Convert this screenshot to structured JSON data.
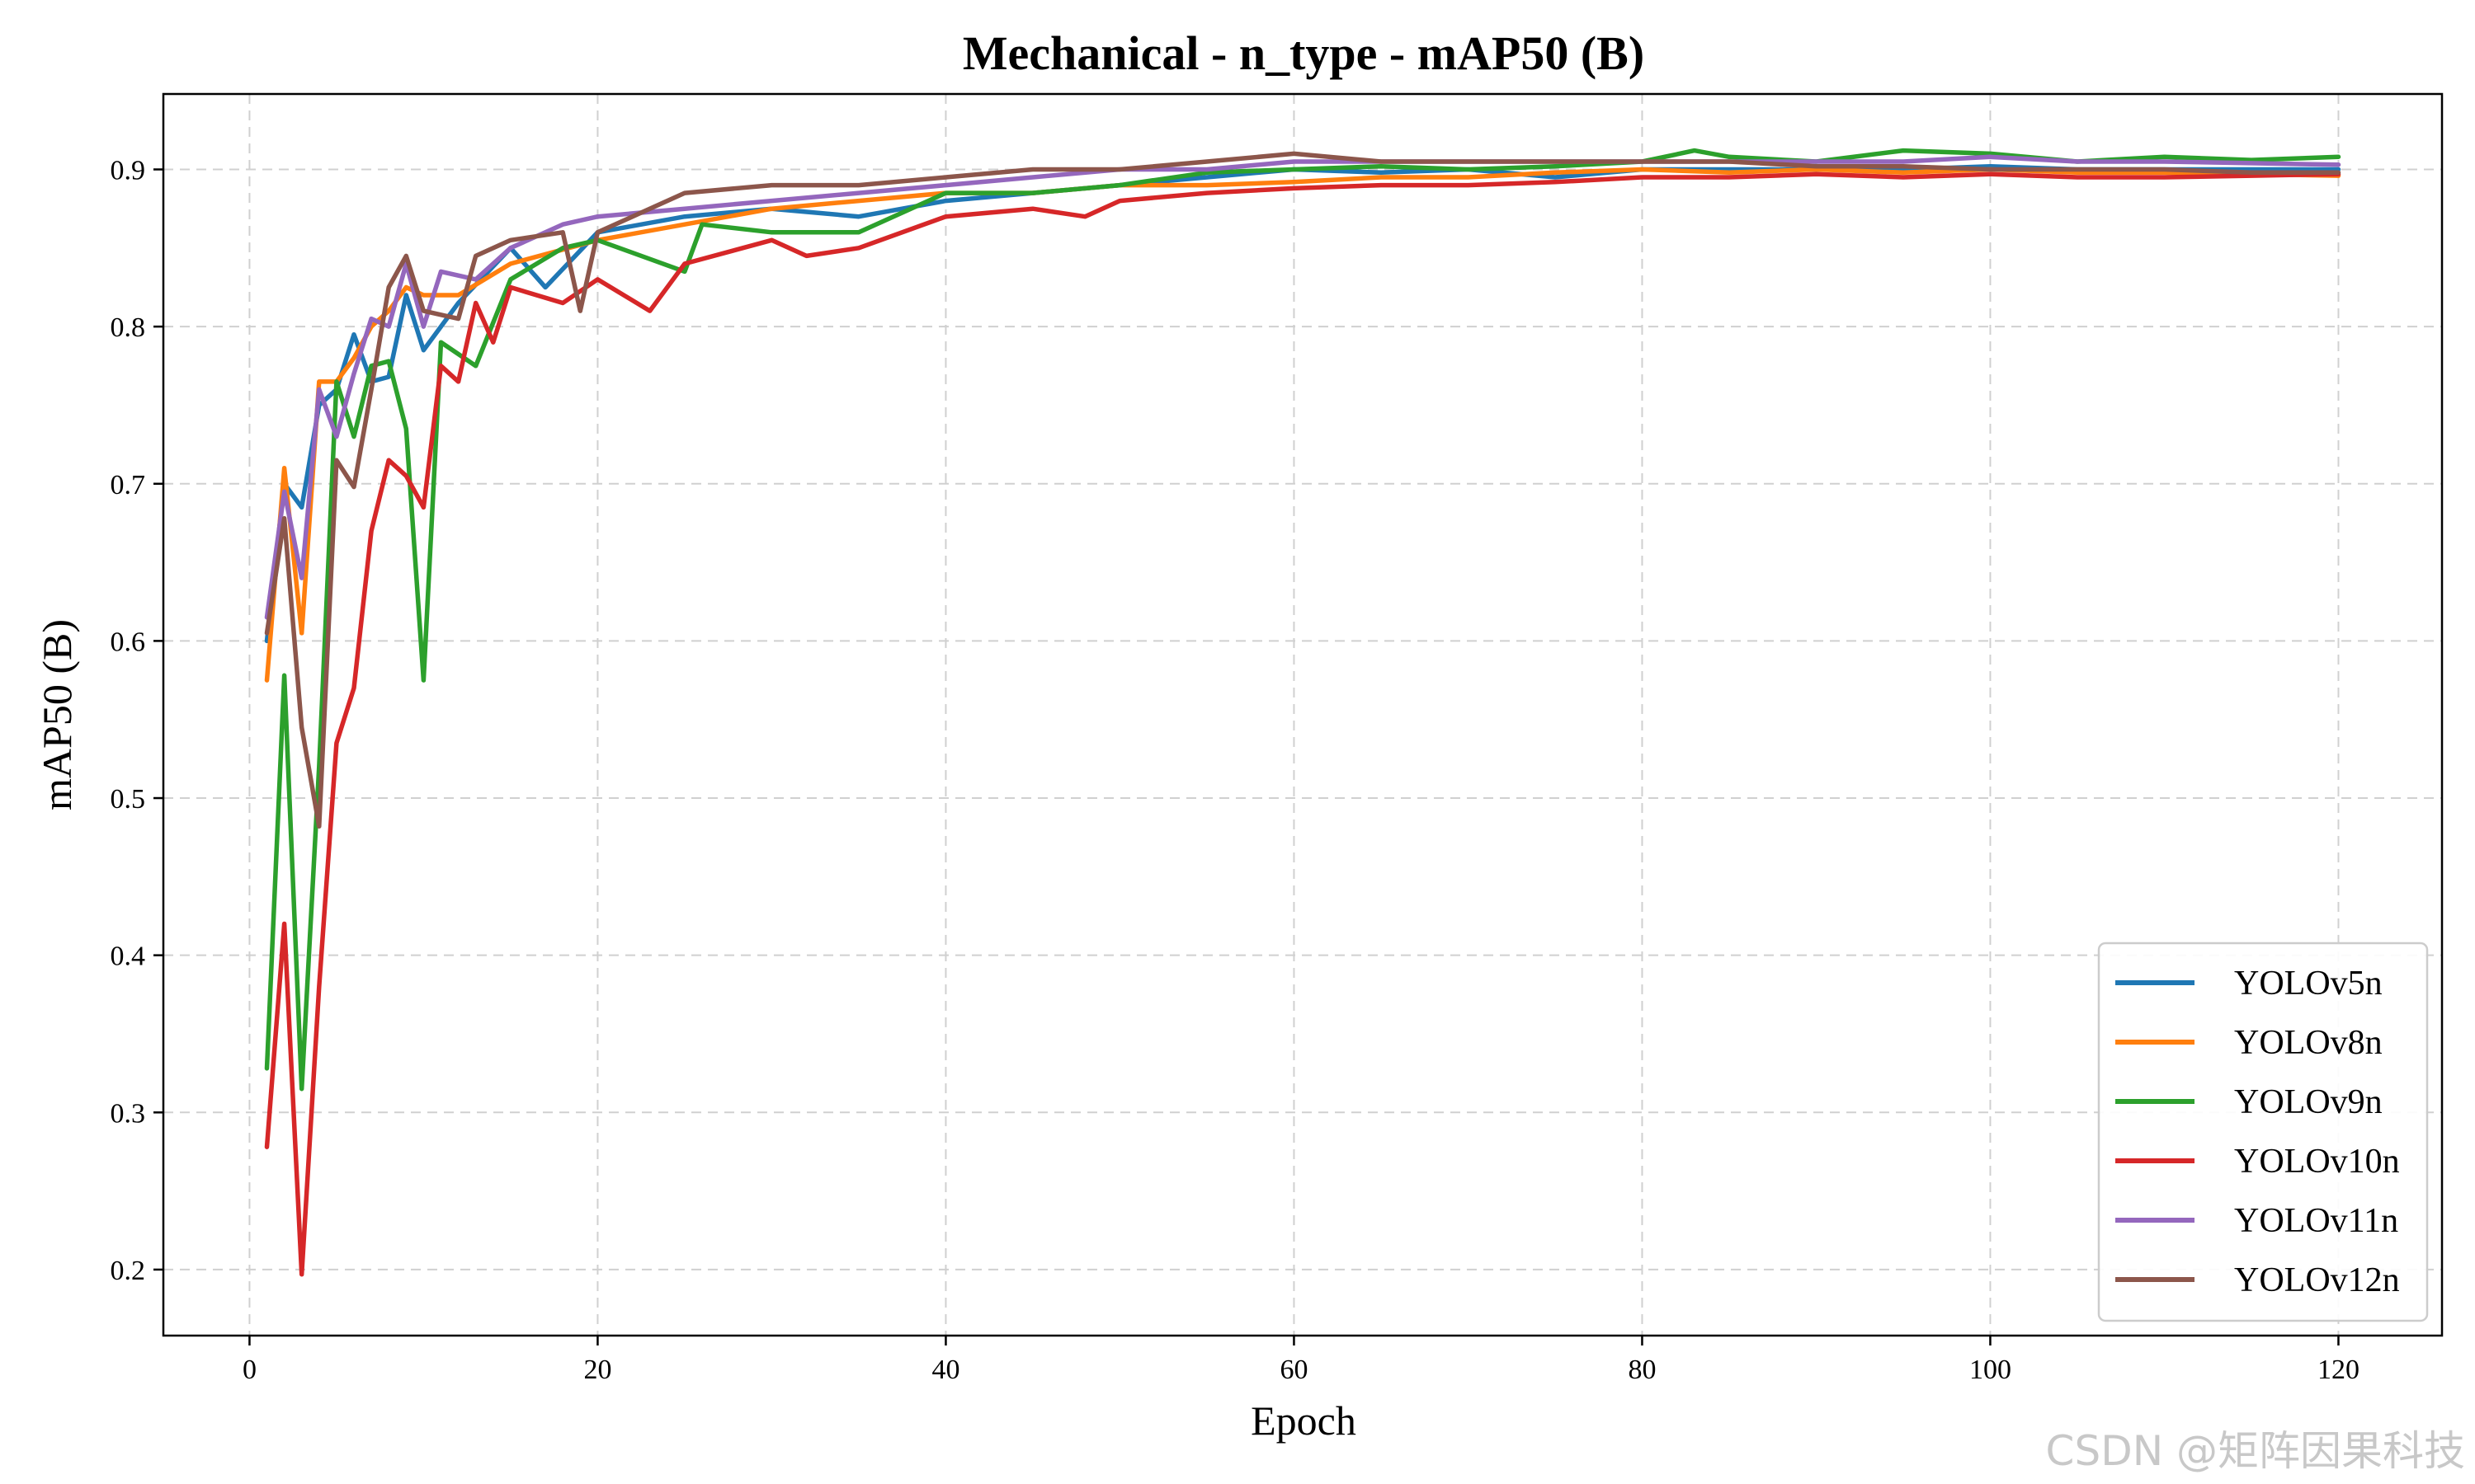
{
  "watermark": "CSDN @矩阵因果科技",
  "chart_data": {
    "type": "line",
    "title": "Mechanical - n_type - mAP50 (B)",
    "xlabel": "Epoch",
    "ylabel": "mAP50 (B)",
    "xlim": [
      -4.95,
      125.95
    ],
    "ylim": [
      0.158,
      0.948
    ],
    "xticks": [
      0,
      20,
      40,
      60,
      80,
      100,
      120
    ],
    "yticks": [
      0.2,
      0.3,
      0.4,
      0.5,
      0.6,
      0.7,
      0.8,
      0.9
    ],
    "grid": true,
    "legend_position": "bottom-right",
    "series": [
      {
        "name": "YOLOv5n",
        "color": "#1f77b4",
        "points": [
          [
            1,
            0.6
          ],
          [
            2,
            0.7
          ],
          [
            3,
            0.685
          ],
          [
            4,
            0.75
          ],
          [
            5,
            0.76
          ],
          [
            6,
            0.795
          ],
          [
            7,
            0.765
          ],
          [
            8,
            0.768
          ],
          [
            9,
            0.82
          ],
          [
            10,
            0.785
          ],
          [
            12,
            0.815
          ],
          [
            15,
            0.85
          ],
          [
            17,
            0.825
          ],
          [
            20,
            0.86
          ],
          [
            25,
            0.87
          ],
          [
            30,
            0.875
          ],
          [
            35,
            0.87
          ],
          [
            40,
            0.88
          ],
          [
            45,
            0.885
          ],
          [
            50,
            0.89
          ],
          [
            55,
            0.895
          ],
          [
            60,
            0.9
          ],
          [
            65,
            0.898
          ],
          [
            70,
            0.9
          ],
          [
            75,
            0.895
          ],
          [
            80,
            0.9
          ],
          [
            85,
            0.9
          ],
          [
            90,
            0.9
          ],
          [
            95,
            0.9
          ],
          [
            100,
            0.902
          ],
          [
            105,
            0.9
          ],
          [
            110,
            0.9
          ],
          [
            115,
            0.9
          ],
          [
            120,
            0.9
          ]
        ]
      },
      {
        "name": "YOLOv8n",
        "color": "#ff7f0e",
        "points": [
          [
            1,
            0.575
          ],
          [
            2,
            0.71
          ],
          [
            3,
            0.605
          ],
          [
            4,
            0.765
          ],
          [
            5,
            0.765
          ],
          [
            6,
            0.78
          ],
          [
            7,
            0.8
          ],
          [
            8,
            0.81
          ],
          [
            9,
            0.825
          ],
          [
            10,
            0.82
          ],
          [
            12,
            0.82
          ],
          [
            15,
            0.84
          ],
          [
            20,
            0.855
          ],
          [
            25,
            0.865
          ],
          [
            30,
            0.875
          ],
          [
            35,
            0.88
          ],
          [
            40,
            0.885
          ],
          [
            45,
            0.885
          ],
          [
            50,
            0.89
          ],
          [
            55,
            0.89
          ],
          [
            60,
            0.892
          ],
          [
            65,
            0.895
          ],
          [
            70,
            0.895
          ],
          [
            75,
            0.898
          ],
          [
            80,
            0.9
          ],
          [
            85,
            0.898
          ],
          [
            90,
            0.9
          ],
          [
            95,
            0.898
          ],
          [
            100,
            0.9
          ],
          [
            105,
            0.898
          ],
          [
            110,
            0.898
          ],
          [
            115,
            0.897
          ],
          [
            120,
            0.896
          ]
        ]
      },
      {
        "name": "YOLOv9n",
        "color": "#2ca02c",
        "points": [
          [
            1,
            0.328
          ],
          [
            2,
            0.578
          ],
          [
            3,
            0.315
          ],
          [
            4,
            0.52
          ],
          [
            5,
            0.765
          ],
          [
            6,
            0.73
          ],
          [
            7,
            0.775
          ],
          [
            8,
            0.778
          ],
          [
            9,
            0.735
          ],
          [
            10,
            0.575
          ],
          [
            11,
            0.79
          ],
          [
            13,
            0.775
          ],
          [
            15,
            0.83
          ],
          [
            18,
            0.85
          ],
          [
            20,
            0.855
          ],
          [
            25,
            0.835
          ],
          [
            26,
            0.865
          ],
          [
            30,
            0.86
          ],
          [
            35,
            0.86
          ],
          [
            40,
            0.885
          ],
          [
            45,
            0.885
          ],
          [
            50,
            0.89
          ],
          [
            55,
            0.898
          ],
          [
            60,
            0.9
          ],
          [
            65,
            0.902
          ],
          [
            70,
            0.9
          ],
          [
            75,
            0.902
          ],
          [
            80,
            0.905
          ],
          [
            83,
            0.912
          ],
          [
            85,
            0.908
          ],
          [
            90,
            0.905
          ],
          [
            95,
            0.912
          ],
          [
            100,
            0.91
          ],
          [
            105,
            0.905
          ],
          [
            110,
            0.908
          ],
          [
            115,
            0.906
          ],
          [
            120,
            0.908
          ]
        ]
      },
      {
        "name": "YOLOv10n",
        "color": "#d62728",
        "points": [
          [
            1,
            0.278
          ],
          [
            2,
            0.42
          ],
          [
            3,
            0.197
          ],
          [
            4,
            0.38
          ],
          [
            5,
            0.535
          ],
          [
            6,
            0.57
          ],
          [
            7,
            0.67
          ],
          [
            8,
            0.715
          ],
          [
            9,
            0.705
          ],
          [
            10,
            0.685
          ],
          [
            11,
            0.775
          ],
          [
            12,
            0.765
          ],
          [
            13,
            0.815
          ],
          [
            14,
            0.79
          ],
          [
            15,
            0.825
          ],
          [
            18,
            0.815
          ],
          [
            20,
            0.83
          ],
          [
            23,
            0.81
          ],
          [
            25,
            0.84
          ],
          [
            30,
            0.855
          ],
          [
            32,
            0.845
          ],
          [
            35,
            0.85
          ],
          [
            40,
            0.87
          ],
          [
            45,
            0.875
          ],
          [
            48,
            0.87
          ],
          [
            50,
            0.88
          ],
          [
            55,
            0.885
          ],
          [
            60,
            0.888
          ],
          [
            65,
            0.89
          ],
          [
            70,
            0.89
          ],
          [
            75,
            0.892
          ],
          [
            80,
            0.895
          ],
          [
            85,
            0.895
          ],
          [
            90,
            0.897
          ],
          [
            95,
            0.895
          ],
          [
            100,
            0.897
          ],
          [
            105,
            0.895
          ],
          [
            110,
            0.895
          ],
          [
            115,
            0.896
          ],
          [
            120,
            0.897
          ]
        ]
      },
      {
        "name": "YOLOv11n",
        "color": "#9467bd",
        "points": [
          [
            1,
            0.615
          ],
          [
            2,
            0.695
          ],
          [
            3,
            0.64
          ],
          [
            4,
            0.76
          ],
          [
            5,
            0.73
          ],
          [
            6,
            0.77
          ],
          [
            7,
            0.805
          ],
          [
            8,
            0.8
          ],
          [
            9,
            0.84
          ],
          [
            10,
            0.8
          ],
          [
            11,
            0.835
          ],
          [
            13,
            0.83
          ],
          [
            15,
            0.85
          ],
          [
            18,
            0.865
          ],
          [
            20,
            0.87
          ],
          [
            25,
            0.875
          ],
          [
            30,
            0.88
          ],
          [
            35,
            0.885
          ],
          [
            40,
            0.89
          ],
          [
            45,
            0.895
          ],
          [
            50,
            0.9
          ],
          [
            55,
            0.9
          ],
          [
            60,
            0.905
          ],
          [
            65,
            0.905
          ],
          [
            70,
            0.905
          ],
          [
            75,
            0.905
          ],
          [
            80,
            0.905
          ],
          [
            85,
            0.905
          ],
          [
            90,
            0.905
          ],
          [
            95,
            0.905
          ],
          [
            100,
            0.908
          ],
          [
            105,
            0.905
          ],
          [
            110,
            0.905
          ],
          [
            115,
            0.904
          ],
          [
            120,
            0.903
          ]
        ]
      },
      {
        "name": "YOLOv12n",
        "color": "#8c564b",
        "points": [
          [
            1,
            0.605
          ],
          [
            2,
            0.678
          ],
          [
            3,
            0.545
          ],
          [
            4,
            0.482
          ],
          [
            5,
            0.715
          ],
          [
            6,
            0.698
          ],
          [
            7,
            0.76
          ],
          [
            8,
            0.825
          ],
          [
            9,
            0.845
          ],
          [
            10,
            0.81
          ],
          [
            12,
            0.805
          ],
          [
            13,
            0.845
          ],
          [
            15,
            0.855
          ],
          [
            18,
            0.86
          ],
          [
            19,
            0.81
          ],
          [
            20,
            0.86
          ],
          [
            25,
            0.885
          ],
          [
            30,
            0.89
          ],
          [
            35,
            0.89
          ],
          [
            40,
            0.895
          ],
          [
            45,
            0.9
          ],
          [
            50,
            0.9
          ],
          [
            55,
            0.905
          ],
          [
            60,
            0.91
          ],
          [
            65,
            0.905
          ],
          [
            70,
            0.905
          ],
          [
            75,
            0.905
          ],
          [
            80,
            0.905
          ],
          [
            85,
            0.905
          ],
          [
            90,
            0.902
          ],
          [
            95,
            0.902
          ],
          [
            100,
            0.9
          ],
          [
            105,
            0.9
          ],
          [
            110,
            0.9
          ],
          [
            115,
            0.898
          ],
          [
            120,
            0.898
          ]
        ]
      }
    ]
  }
}
